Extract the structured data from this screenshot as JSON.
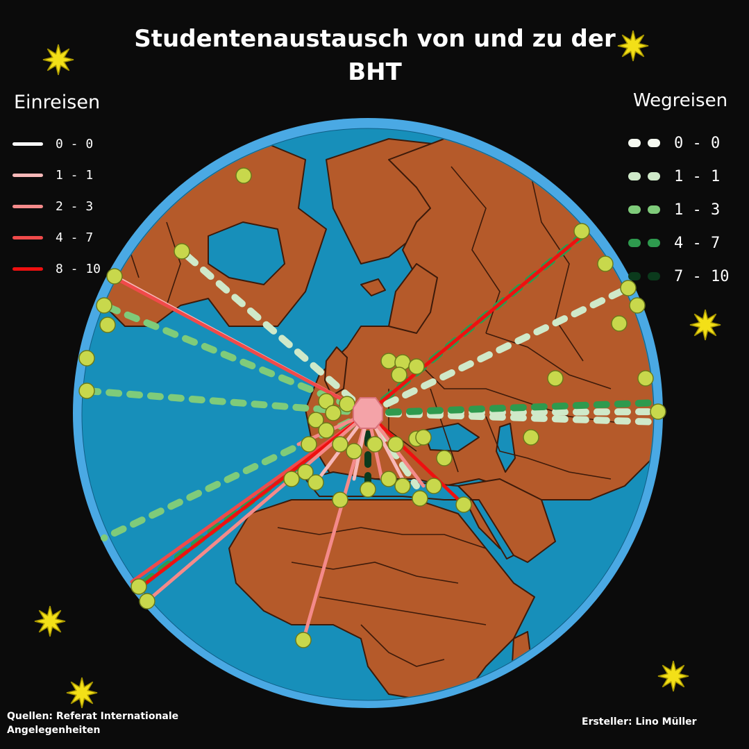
{
  "title": "Studentenaustausch von und zu der BHT",
  "legend_incoming": {
    "title": "Einreisen",
    "items": [
      {
        "label": "0 - 0",
        "color": "#ffffff"
      },
      {
        "label": "1 - 1",
        "color": "#f7b8b8"
      },
      {
        "label": "2 - 3",
        "color": "#f48a8a"
      },
      {
        "label": "4 - 7",
        "color": "#f04a4a"
      },
      {
        "label": "8 - 10",
        "color": "#ee1010"
      }
    ]
  },
  "legend_outgoing": {
    "title": "Wegreisen",
    "items": [
      {
        "label": "0 - 0",
        "color": "#f4f8f0"
      },
      {
        "label": "1 - 1",
        "color": "#cfe9c9"
      },
      {
        "label": "1 - 3",
        "color": "#7fcb7a"
      },
      {
        "label": "4 - 7",
        "color": "#2e9a4e"
      },
      {
        "label": "7 - 10",
        "color": "#0b3a1c"
      }
    ]
  },
  "credits": {
    "source": "Quellen:  Referat Internationale Angelegenheiten",
    "author": "Ersteller: Lino Müller"
  },
  "colors": {
    "background": "#0b0b0b",
    "ocean": "#178fba",
    "globe_rim": "#4aa9e4",
    "land": "#b55a2a",
    "city_dot": "#c8d84c",
    "hub": "#f4a3a8",
    "star": "#f3e018"
  }
}
